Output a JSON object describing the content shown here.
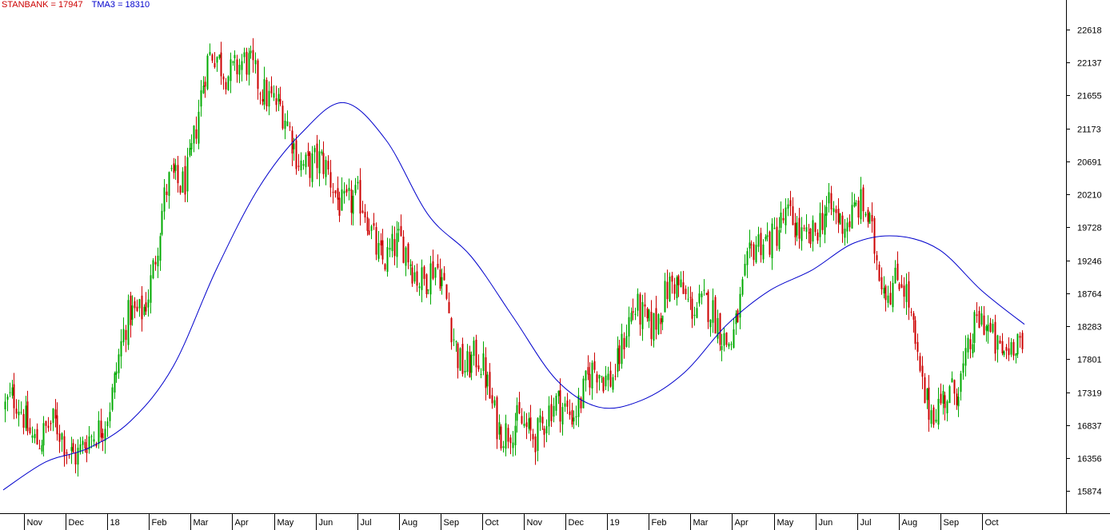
{
  "legend": {
    "series1": "STANBANK = 17947",
    "series2": "TMA3 = 18310"
  },
  "colors": {
    "up": "#00aa00",
    "down": "#cc0000",
    "ma": "#0000cc",
    "legend_price": "#cc0000",
    "legend_ma": "#0000cc",
    "axis": "#000000",
    "background": "#ffffff"
  },
  "chart_data": {
    "type": "candlestick",
    "title": "",
    "xlabel": "",
    "ylabel": "",
    "y_ticks": [
      22618,
      22137,
      21655,
      21173,
      20691,
      20210,
      19728,
      19246,
      18764,
      18283,
      17801,
      17319,
      16837,
      16356,
      15874
    ],
    "ylim": [
      15550,
      23050
    ],
    "x_tick_labels": [
      "Nov",
      "Dec",
      "18",
      "Feb",
      "Mar",
      "Apr",
      "May",
      "Jun",
      "Jul",
      "Aug",
      "Sep",
      "Oct",
      "Nov",
      "Dec",
      "19",
      "Feb",
      "Mar",
      "Apr",
      "May",
      "Jun",
      "Jul",
      "Aug",
      "Sep",
      "Oct"
    ],
    "grid": false,
    "legend_position": "top-left",
    "series": [
      {
        "name": "STANBANK",
        "kind": "candlestick",
        "last": 17947,
        "x": [
          "2017-11",
          "2017-12",
          "2018-01",
          "2018-02",
          "2018-03",
          "2018-04",
          "2018-05",
          "2018-06",
          "2018-07",
          "2018-08",
          "2018-09",
          "2018-10",
          "2018-11",
          "2018-12",
          "2019-01",
          "2019-02",
          "2019-03",
          "2019-04",
          "2019-05",
          "2019-06",
          "2019-07",
          "2019-08",
          "2019-09",
          "2019-10"
        ],
        "values": [
          16700,
          16500,
          18300,
          20300,
          22200,
          21900,
          20800,
          20200,
          19400,
          19100,
          17700,
          16700,
          17000,
          17500,
          18400,
          18800,
          18200,
          19700,
          19700,
          20000,
          18900,
          17000,
          18200,
          17947
        ]
      },
      {
        "name": "TMA3",
        "kind": "line",
        "last": 18310,
        "x": [
          "2017-10",
          "2017-11",
          "2017-12",
          "2018-01",
          "2018-02",
          "2018-03",
          "2018-04",
          "2018-05",
          "2018-06",
          "2018-07",
          "2018-08",
          "2018-09",
          "2018-10",
          "2018-11",
          "2018-12",
          "2019-01",
          "2019-02",
          "2019-03",
          "2019-04",
          "2019-05",
          "2019-06",
          "2019-07",
          "2019-08",
          "2019-09",
          "2019-10"
        ],
        "values": [
          15890,
          16300,
          16500,
          16900,
          17700,
          19100,
          20300,
          21100,
          21550,
          21000,
          19900,
          19300,
          18400,
          17500,
          17100,
          17200,
          17600,
          18300,
          18800,
          19100,
          19500,
          19600,
          19400,
          18800,
          18310
        ]
      }
    ]
  }
}
